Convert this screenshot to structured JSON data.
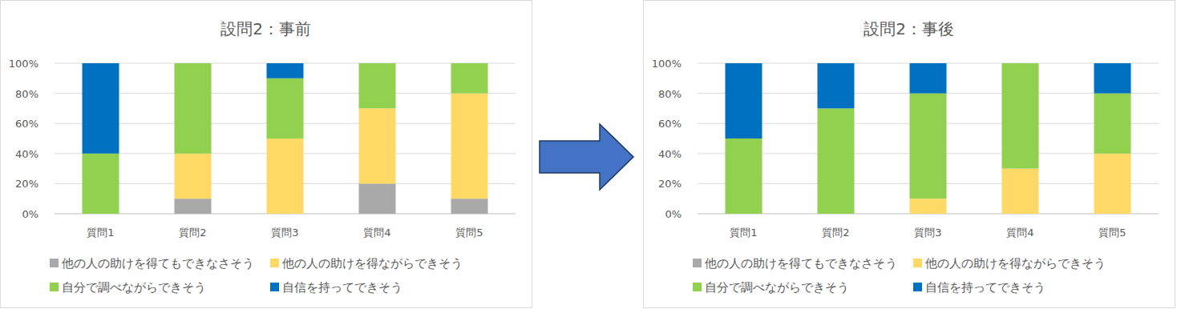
{
  "chart_data": [
    {
      "type": "bar",
      "title": "設問2：事前",
      "categories": [
        "質問1",
        "質問2",
        "質問3",
        "質問4",
        "質問5"
      ],
      "series": [
        {
          "name": "他の人の助けを得てもできなさそう",
          "color": "#a9a9a9",
          "values": [
            0,
            10,
            0,
            20,
            10
          ]
        },
        {
          "name": "他の人の助けを得ながらできそう",
          "color": "#ffd966",
          "values": [
            0,
            30,
            50,
            50,
            70
          ]
        },
        {
          "name": "自分で調べながらできそう",
          "color": "#92d050",
          "values": [
            40,
            60,
            40,
            30,
            20
          ]
        },
        {
          "name": "自信を持ってできそう",
          "color": "#0070c0",
          "values": [
            60,
            0,
            10,
            0,
            0
          ]
        }
      ],
      "ylim": [
        0,
        100
      ],
      "yticks": [
        {
          "value": 0,
          "label": "0%"
        },
        {
          "value": 20,
          "label": "20%"
        },
        {
          "value": 40,
          "label": "40%"
        },
        {
          "value": 60,
          "label": "60%"
        },
        {
          "value": 80,
          "label": "80%"
        },
        {
          "value": 100,
          "label": "100%"
        }
      ],
      "stacked": true,
      "grid": true,
      "legend": "bottom"
    },
    {
      "type": "bar",
      "title": "設問2：事後",
      "categories": [
        "質問1",
        "質問2",
        "質問3",
        "質問4",
        "質問5"
      ],
      "series": [
        {
          "name": "他の人の助けを得てもできなさそう",
          "color": "#a9a9a9",
          "values": [
            0,
            0,
            0,
            0,
            0
          ]
        },
        {
          "name": "他の人の助けを得ながらできそう",
          "color": "#ffd966",
          "values": [
            0,
            0,
            10,
            30,
            40
          ]
        },
        {
          "name": "自分で調べながらできそう",
          "color": "#92d050",
          "values": [
            50,
            70,
            70,
            70,
            40
          ]
        },
        {
          "name": "自信を持ってできそう",
          "color": "#0070c0",
          "values": [
            50,
            30,
            20,
            0,
            20
          ]
        }
      ],
      "ylim": [
        0,
        100
      ],
      "yticks": [
        {
          "value": 0,
          "label": "0%"
        },
        {
          "value": 20,
          "label": "20%"
        },
        {
          "value": 40,
          "label": "40%"
        },
        {
          "value": 60,
          "label": "60%"
        },
        {
          "value": 80,
          "label": "80%"
        },
        {
          "value": 100,
          "label": "100%"
        }
      ],
      "stacked": true,
      "grid": true,
      "legend": "bottom"
    }
  ]
}
